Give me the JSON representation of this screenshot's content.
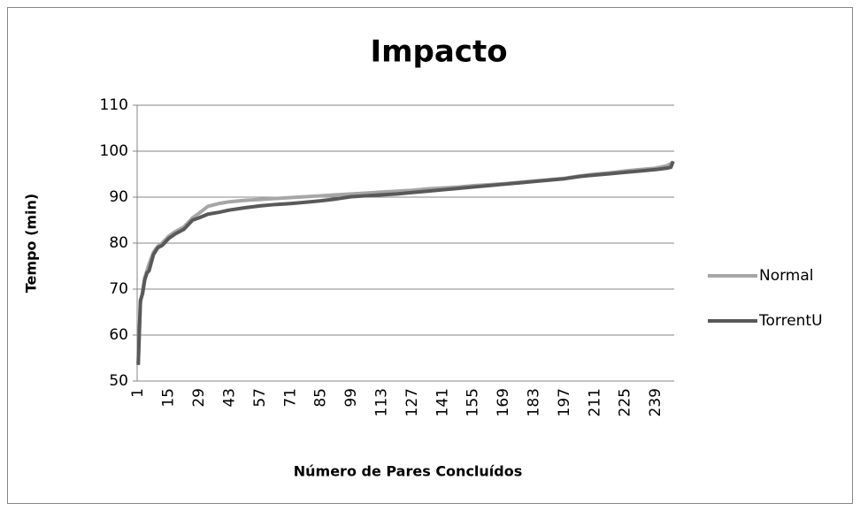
{
  "chart_data": {
    "type": "line",
    "title": "Impacto",
    "x_label": "Número de Pares Concluídos",
    "y_label": "Tempo (min)",
    "x": [
      1,
      2,
      3,
      4,
      5,
      6,
      8,
      10,
      12,
      15,
      18,
      22,
      26,
      29,
      33,
      38,
      43,
      50,
      57,
      64,
      71,
      78,
      85,
      92,
      99,
      106,
      113,
      120,
      127,
      134,
      141,
      148,
      155,
      162,
      169,
      176,
      183,
      190,
      197,
      204,
      211,
      218,
      225,
      232,
      239,
      244,
      246,
      247
    ],
    "series": [
      {
        "name": "Normal",
        "color": "#a6a6a6",
        "values": [
          54,
          67,
          69.5,
          72.5,
          74,
          75.5,
          78,
          79.3,
          80,
          81.5,
          82.5,
          83.5,
          85.5,
          86.5,
          88,
          88.6,
          89,
          89.3,
          89.5,
          89.7,
          89.9,
          90.1,
          90.3,
          90.5,
          90.7,
          90.9,
          91.1,
          91.3,
          91.5,
          91.8,
          92,
          92.2,
          92.5,
          92.7,
          92.9,
          93.2,
          93.5,
          93.8,
          94.1,
          94.6,
          95,
          95.3,
          95.7,
          96,
          96.3,
          96.8,
          97.3,
          97.5
        ]
      },
      {
        "name": "TorrentU",
        "color": "#595959",
        "values": [
          53.5,
          67.5,
          69,
          72,
          73.5,
          74,
          77.5,
          79,
          79.5,
          81,
          82,
          83,
          85,
          85.5,
          86.3,
          86.7,
          87.2,
          87.7,
          88.1,
          88.4,
          88.6,
          88.9,
          89.2,
          89.6,
          90.1,
          90.3,
          90.5,
          90.7,
          91,
          91.3,
          91.6,
          91.9,
          92.2,
          92.5,
          92.8,
          93.1,
          93.4,
          93.7,
          94,
          94.5,
          94.8,
          95.1,
          95.4,
          95.7,
          96,
          96.3,
          96.5,
          97.8
        ]
      }
    ],
    "xlim": [
      0.5,
      247.5
    ],
    "xticks": [
      1,
      15,
      29,
      43,
      57,
      71,
      85,
      99,
      113,
      127,
      141,
      155,
      169,
      183,
      197,
      211,
      225,
      239
    ],
    "ylim": [
      50,
      110
    ],
    "yticks": [
      50,
      60,
      70,
      80,
      90,
      100,
      110
    ],
    "grid": true,
    "legend": "right"
  }
}
